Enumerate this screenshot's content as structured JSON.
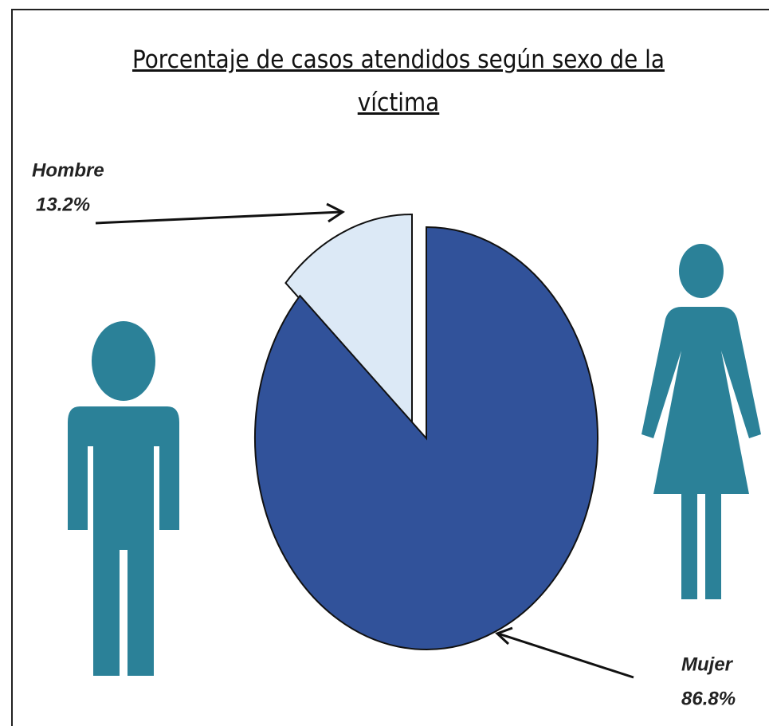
{
  "chart_data": {
    "type": "pie",
    "title": "Porcentaje de casos atendidos según sexo de la víctima",
    "categories": [
      "Hombre",
      "Mujer"
    ],
    "values": [
      13.2,
      86.8
    ],
    "value_labels": [
      "13.2%",
      "86.8%"
    ],
    "colors": [
      "#dce9f6",
      "#31529a"
    ],
    "exploded": [
      true,
      false
    ]
  }
}
